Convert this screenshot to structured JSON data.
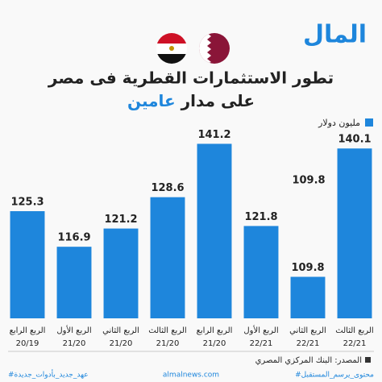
{
  "chart_data": {
    "type": "bar",
    "logo": "المال",
    "title": "تطور الاستثمارات القطرية فى مصر",
    "subtitle": [
      "على مدار",
      "عامين"
    ],
    "unit_label": "مليون دولار",
    "categories": [
      [
        "الربع الرابع",
        "20/19"
      ],
      [
        "الربع الأول",
        "21/20"
      ],
      [
        "الربع الثاني",
        "21/20"
      ],
      [
        "الربع الثالث",
        "21/20"
      ],
      [
        "الربع الرابع",
        "21/20"
      ],
      [
        "الربع الأول",
        "22/21"
      ],
      [
        "الربع الثاني",
        "22/21"
      ],
      [
        "الربع الثالث",
        "22/21"
      ]
    ],
    "values": [
      125.3,
      116.9,
      121.2,
      128.6,
      141.2,
      121.8,
      109.8,
      140.1
    ],
    "color": "#1e86dc",
    "ylim": [
      100,
      143
    ],
    "annotations": [
      "109.8"
    ],
    "source": "المصدر: البنك المركزي المصري",
    "footer": [
      "#عهد_جديد_بأدوات_جديدة",
      "almalnews.com",
      "#محتوى_يرسم_المستقبل"
    ]
  }
}
